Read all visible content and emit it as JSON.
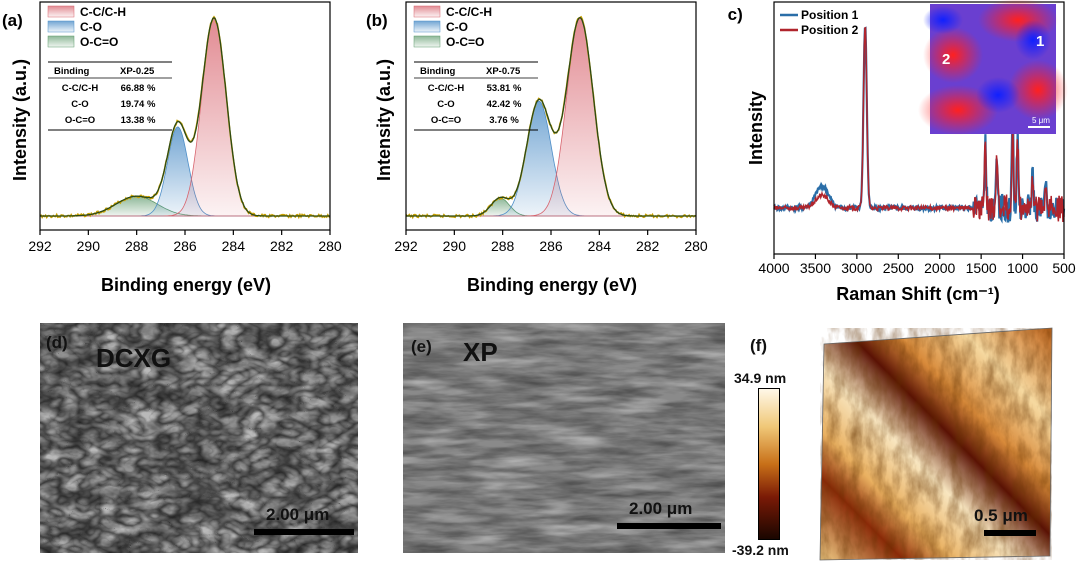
{
  "colors": {
    "cc": "#d8646e",
    "co": "#4f8fc8",
    "occo": "#5e9a6c",
    "envelope": "#2c4a16",
    "raw": "#c8a000",
    "pos1": "#2a6ea8",
    "pos2": "#b0242c",
    "afm_dark": "#1a0600",
    "afm_light": "#fff4dc"
  },
  "chart_data": [
    {
      "panel": "(a)",
      "type": "area",
      "xlabel": "Binding energy (eV)",
      "ylabel": "Intensity (a.u.)",
      "xlim": [
        292,
        280
      ],
      "xticks": [
        292,
        290,
        288,
        286,
        284,
        282,
        280
      ],
      "legend": [
        "C-C/C-H",
        "C-O",
        "O-C=O"
      ],
      "series": [
        {
          "name": "C-C/C-H",
          "center": 284.8,
          "fwhm": 1.2,
          "height": 1.0
        },
        {
          "name": "C-O",
          "center": 286.3,
          "fwhm": 1.0,
          "height": 0.45
        },
        {
          "name": "O-C=O",
          "center": 288.0,
          "fwhm": 2.0,
          "height": 0.1
        }
      ],
      "table": {
        "headers": [
          "Binding",
          "XP-0.25"
        ],
        "rows": [
          [
            "C-C/C-H",
            "66.88 %"
          ],
          [
            "C-O",
            "19.74 %"
          ],
          [
            "O-C=O",
            "13.38 %"
          ]
        ]
      }
    },
    {
      "panel": "(b)",
      "type": "area",
      "xlabel": "Binding energy (eV)",
      "ylabel": "Intensity (a.u.)",
      "xlim": [
        292,
        280
      ],
      "xticks": [
        292,
        290,
        288,
        286,
        284,
        282,
        280
      ],
      "legend": [
        "C-C/C-H",
        "C-O",
        "O-C=O"
      ],
      "series": [
        {
          "name": "C-C/C-H",
          "center": 284.8,
          "fwhm": 1.3,
          "height": 1.0
        },
        {
          "name": "C-O",
          "center": 286.5,
          "fwhm": 1.2,
          "height": 0.58
        },
        {
          "name": "O-C=O",
          "center": 288.1,
          "fwhm": 0.9,
          "height": 0.09
        }
      ],
      "table": {
        "headers": [
          "Binding",
          "XP-0.75"
        ],
        "rows": [
          [
            "C-C/C-H",
            "53.81 %"
          ],
          [
            "C-O",
            "42.42 %"
          ],
          [
            "O-C=O",
            "3.76 %"
          ]
        ]
      }
    },
    {
      "panel": "(c)",
      "type": "line",
      "xlabel": "Raman Shift (cm⁻¹)",
      "ylabel": "Intensity",
      "xlim": [
        4000,
        500
      ],
      "xticks": [
        4000,
        3500,
        3000,
        2500,
        2000,
        1500,
        1000,
        500
      ],
      "series": [
        {
          "name": "Position 1",
          "peaks": [
            [
              3420,
              0.12,
              110
            ],
            [
              2900,
              1.0,
              28
            ],
            [
              1450,
              0.35,
              14
            ],
            [
              1310,
              0.3,
              14
            ],
            [
              1120,
              0.5,
              14
            ],
            [
              1060,
              0.4,
              14
            ],
            [
              880,
              0.2,
              14
            ],
            [
              720,
              0.12,
              14
            ]
          ]
        },
        {
          "name": "Position 2",
          "peaks": [
            [
              3420,
              0.07,
              110
            ],
            [
              2900,
              1.0,
              28
            ],
            [
              1450,
              0.33,
              14
            ],
            [
              1310,
              0.28,
              14
            ],
            [
              1120,
              0.45,
              14
            ],
            [
              1060,
              0.38,
              14
            ],
            [
              880,
              0.18,
              14
            ],
            [
              720,
              0.1,
              14
            ]
          ]
        }
      ],
      "inset": {
        "markers": [
          "1",
          "2"
        ],
        "scale_label": "5 μm"
      }
    }
  ],
  "sem": {
    "d": {
      "panel": "(d)",
      "title": "DCXG",
      "scale": "2.00 μm"
    },
    "e": {
      "panel": "(e)",
      "title": "XP",
      "scale": "2.00 μm"
    }
  },
  "afm": {
    "panel": "(f)",
    "max": "34.9 nm",
    "min": "-39.2 nm",
    "scale": "0.5 μm"
  }
}
